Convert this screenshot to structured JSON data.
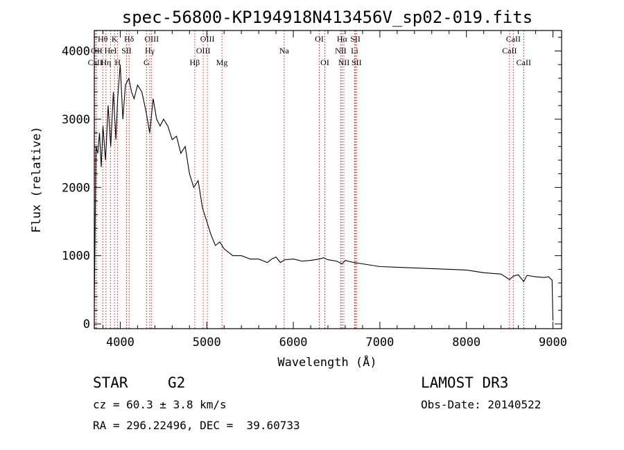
{
  "chart_data": {
    "type": "line",
    "title": "spec-56800-KP194918N413456V_sp02-019.fits",
    "xlabel": "Wavelength (Å)",
    "ylabel": "Flux (relative)",
    "xlim": [
      3700,
      9100
    ],
    "ylim": [
      -70,
      4300
    ],
    "x_ticks": [
      4000,
      5000,
      6000,
      7000,
      8000,
      9000
    ],
    "y_ticks": [
      0,
      1000,
      2000,
      3000,
      4000
    ],
    "grid": false,
    "series": [
      {
        "x": [
          3700,
          3720,
          3740,
          3760,
          3780,
          3800,
          3830,
          3860,
          3890,
          3920,
          3950,
          3970,
          4000,
          4030,
          4060,
          4100,
          4130,
          4160,
          4200,
          4250,
          4300,
          4340,
          4380,
          4420,
          4460,
          4500,
          4550,
          4600,
          4650,
          4700,
          4750,
          4800,
          4850,
          4900,
          4950,
          5000,
          5050,
          5100,
          5150,
          5200,
          5250,
          5300,
          5400,
          5500,
          5600,
          5700,
          5750,
          5800,
          5850,
          5900,
          6000,
          6100,
          6200,
          6300,
          6350,
          6400,
          6500,
          6563,
          6600,
          6700,
          6800,
          6900,
          7000,
          7200,
          7400,
          7600,
          7800,
          8000,
          8200,
          8400,
          8498,
          8542,
          8600,
          8662,
          8700,
          8800,
          8900,
          8950,
          8990,
          9000
        ],
        "values": [
          300,
          2600,
          2500,
          2800,
          2300,
          2900,
          2400,
          3200,
          2600,
          3400,
          2700,
          3300,
          3800,
          3000,
          3500,
          3600,
          3400,
          3300,
          3500,
          3400,
          3100,
          2800,
          3300,
          3000,
          2900,
          3000,
          2900,
          2700,
          2750,
          2500,
          2600,
          2200,
          2000,
          2100,
          1700,
          1500,
          1300,
          1150,
          1200,
          1100,
          1050,
          1000,
          1000,
          950,
          950,
          900,
          950,
          980,
          900,
          940,
          950,
          920,
          930,
          950,
          970,
          940,
          920,
          880,
          930,
          900,
          880,
          860,
          840,
          830,
          820,
          810,
          800,
          790,
          750,
          730,
          650,
          700,
          720,
          620,
          710,
          690,
          680,
          690,
          640,
          50
        ]
      }
    ],
    "lines": [
      {
        "label": "Hθ",
        "x": 3798,
        "row": 1
      },
      {
        "label": "OII",
        "x": 3727,
        "row": 2
      },
      {
        "label": "CaII",
        "x": 3710,
        "row": 3
      },
      {
        "label": "Hη",
        "x": 3835,
        "row": 3
      },
      {
        "label": "HeI",
        "x": 3889,
        "row": 2
      },
      {
        "label": "K",
        "x": 3934,
        "row": 1
      },
      {
        "label": "H",
        "x": 3970,
        "row": 3
      },
      {
        "label": "SII",
        "x": 4072,
        "row": 2
      },
      {
        "label": "Hδ",
        "x": 4102,
        "row": 1
      },
      {
        "label": "OIII",
        "x": 4363,
        "row": 1
      },
      {
        "label": "Hγ",
        "x": 4341,
        "row": 2
      },
      {
        "label": "G",
        "x": 4304,
        "row": 3
      },
      {
        "label": "Hβ",
        "x": 4861,
        "row": 3
      },
      {
        "label": "OIII",
        "x": 5007,
        "row": 1
      },
      {
        "label": "OIII",
        "x": 4959,
        "row": 2
      },
      {
        "label": "Mg",
        "x": 5175,
        "row": 3
      },
      {
        "label": "Na",
        "x": 5894,
        "row": 2
      },
      {
        "label": "OI",
        "x": 6300,
        "row": 1
      },
      {
        "label": "OI",
        "x": 6364,
        "row": 3
      },
      {
        "label": "Hα",
        "x": 6563,
        "row": 1
      },
      {
        "label": "NII",
        "x": 6548,
        "row": 2
      },
      {
        "label": "NII",
        "x": 6584,
        "row": 3
      },
      {
        "label": "SII",
        "x": 6717,
        "row": 1
      },
      {
        "label": "Li",
        "x": 6708,
        "row": 2
      },
      {
        "label": "SII",
        "x": 6731,
        "row": 3
      },
      {
        "label": "CaII",
        "x": 8542,
        "row": 1
      },
      {
        "label": "CaII",
        "x": 8498,
        "row": 2
      },
      {
        "label": "CaII",
        "x": 8662,
        "row": 3
      }
    ]
  },
  "info": {
    "class": "STAR",
    "subclass": "G2",
    "survey": "LAMOST DR3",
    "cz": "cz = 60.3 ± 3.8 km/s",
    "obs_date": "Obs-Date: 20140522",
    "radec": "RA = 296.22496, DEC =  39.60733"
  }
}
